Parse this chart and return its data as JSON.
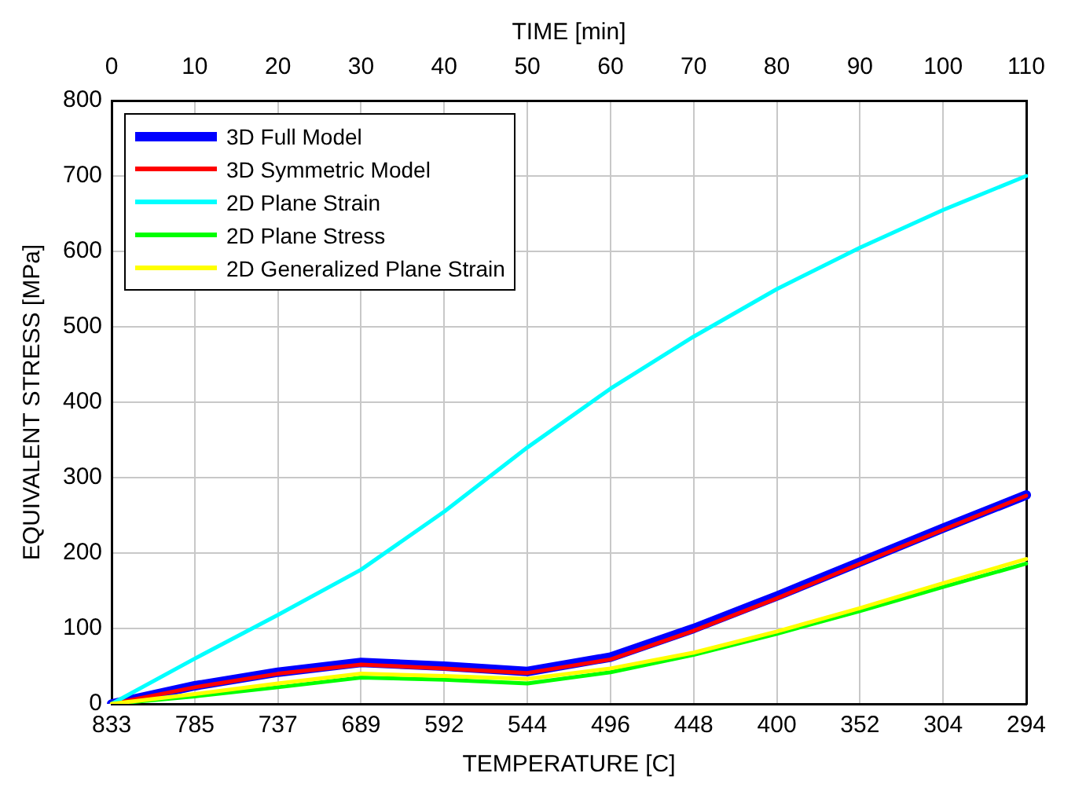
{
  "chart_data": {
    "type": "line",
    "xlabel": "TEMPERATURE [C]",
    "x2label": "TIME [min]",
    "ylabel": "EQUIVALENT STRESS [MPa]",
    "categories": [
      "833",
      "785",
      "737",
      "689",
      "592",
      "544",
      "496",
      "448",
      "400",
      "352",
      "304",
      "294"
    ],
    "x2lim": [
      0,
      110
    ],
    "x2ticks": [
      0,
      10,
      20,
      30,
      40,
      50,
      60,
      70,
      80,
      90,
      100,
      110
    ],
    "ylim": [
      0,
      800
    ],
    "yticks": [
      0,
      100,
      200,
      300,
      400,
      500,
      600,
      700,
      800
    ],
    "grid": true,
    "legend": "top left",
    "marker": "none",
    "line_style": "solid",
    "series": [
      {
        "name": "3D Full Model",
        "color": "#0000ff",
        "values": [
          0,
          24,
          42,
          55,
          50,
          43,
          62,
          100,
          143,
          188,
          233,
          277
        ]
      },
      {
        "name": "3D Symmetric Model",
        "color": "#ff0000",
        "values": [
          0,
          22,
          40,
          52,
          47,
          41,
          59,
          97,
          140,
          186,
          231,
          276
        ]
      },
      {
        "name": "2D Plane Strain",
        "color": "#00ffff",
        "values": [
          0,
          60,
          118,
          178,
          255,
          340,
          418,
          487,
          550,
          605,
          655,
          700
        ]
      },
      {
        "name": "2D Plane Stress",
        "color": "#00ff00",
        "values": [
          0,
          10,
          22,
          35,
          32,
          27,
          42,
          65,
          93,
          123,
          155,
          186
        ]
      },
      {
        "name": "2D Generalized Plane Strain",
        "color": "#ffff00",
        "values": [
          0,
          13,
          27,
          40,
          37,
          33,
          47,
          68,
          96,
          127,
          160,
          192
        ]
      }
    ]
  }
}
